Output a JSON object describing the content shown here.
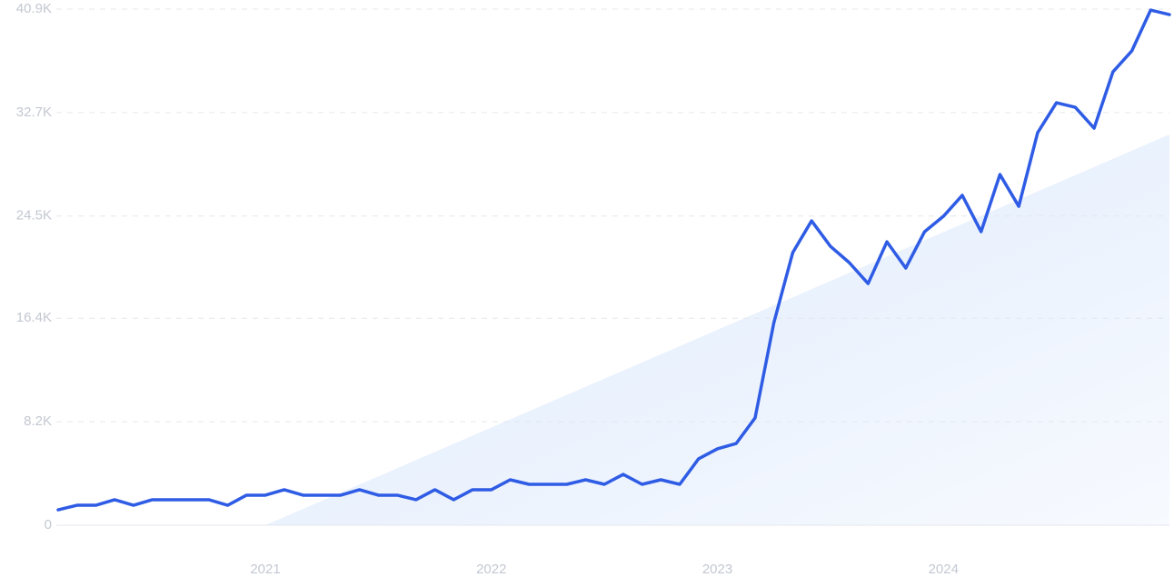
{
  "chart_data": {
    "type": "line",
    "categories": [
      null,
      null,
      null,
      null,
      null,
      null,
      null,
      null,
      null,
      null,
      null,
      "2021",
      null,
      null,
      null,
      null,
      null,
      null,
      null,
      null,
      null,
      null,
      null,
      "2022",
      null,
      null,
      null,
      null,
      null,
      null,
      null,
      null,
      null,
      null,
      null,
      "2023",
      null,
      null,
      null,
      null,
      null,
      null,
      null,
      null,
      null,
      null,
      null,
      "2024",
      null,
      null,
      null,
      null,
      null,
      null,
      null,
      null,
      null,
      null,
      null,
      null
    ],
    "series": [
      {
        "color": "#2f5ce5",
        "values": [
          1220,
          1580,
          1580,
          2020,
          1580,
          2020,
          2020,
          2020,
          2020,
          1580,
          2380,
          2380,
          2810,
          2380,
          2380,
          2380,
          2810,
          2380,
          2380,
          2020,
          2810,
          2020,
          2810,
          2810,
          3600,
          3240,
          3240,
          3240,
          3600,
          3240,
          4030,
          3240,
          3600,
          3240,
          5260,
          6050,
          6480,
          8500,
          16060,
          21600,
          24120,
          22100,
          20810,
          19150,
          22460,
          20380,
          23260,
          24480,
          26140,
          23260,
          27790,
          25270,
          31100,
          33480,
          33120,
          31460,
          35930,
          37580,
          40820,
          40460
        ]
      }
    ],
    "ylim": [
      0,
      40900
    ],
    "yticks": [
      0,
      {
        "value": 8200,
        "label": "8.2K"
      },
      {
        "value": 16400,
        "label": "16.4K"
      },
      {
        "value": 24500,
        "label": "24.5K"
      },
      {
        "value": 32700,
        "label": "32.7K"
      },
      {
        "value": 40900,
        "label": "40.9K"
      }
    ],
    "grid": true
  }
}
